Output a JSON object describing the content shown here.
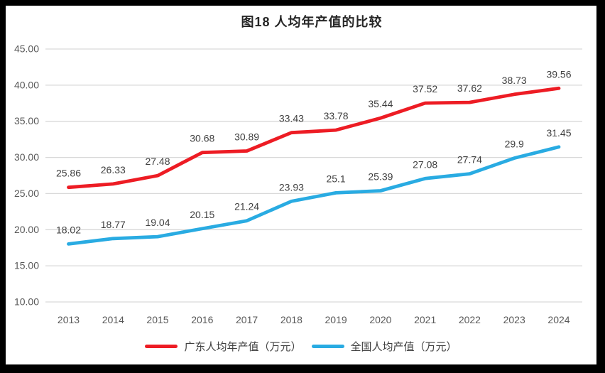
{
  "frame": {
    "border_color": "#000000",
    "panel_background": "#ffffff"
  },
  "chart_data": {
    "type": "line",
    "title": "图18 人均年产值的比较",
    "categories": [
      "2013",
      "2014",
      "2015",
      "2016",
      "2017",
      "2018",
      "2019",
      "2020",
      "2021",
      "2022",
      "2023",
      "2024"
    ],
    "series": [
      {
        "name": "广东人均年产值（万元）",
        "color": "#ed1c24",
        "values": [
          25.86,
          26.33,
          27.48,
          30.68,
          30.89,
          33.43,
          33.78,
          35.44,
          37.52,
          37.62,
          38.73,
          39.56
        ],
        "labels": [
          "25.86",
          "26.33",
          "27.48",
          "30.68",
          "30.89",
          "33.43",
          "33.78",
          "35.44",
          "37.52",
          "37.62",
          "38.73",
          "39.56"
        ]
      },
      {
        "name": "全国人均产值（万元）",
        "color": "#29abe2",
        "values": [
          18.02,
          18.77,
          19.04,
          20.15,
          21.24,
          23.93,
          25.1,
          25.39,
          27.08,
          27.74,
          29.9,
          31.45
        ],
        "labels": [
          "18.02",
          "18.77",
          "19.04",
          "20.15",
          "21.24",
          "23.93",
          "25.1",
          "25.39",
          "27.08",
          "27.74",
          "29.9",
          "31.45"
        ]
      }
    ],
    "ylim": [
      10,
      45
    ],
    "ytick_step": 5,
    "ytick_labels": [
      "45.00",
      "40.00",
      "35.00",
      "30.00",
      "25.00",
      "20.00",
      "15.00",
      "10.00"
    ],
    "grid": true,
    "legend_position": "bottom",
    "grid_color": "#d9d9d9",
    "axis_tick_color": "#595959",
    "data_label_color": "#404040",
    "title_color": "#262626"
  }
}
